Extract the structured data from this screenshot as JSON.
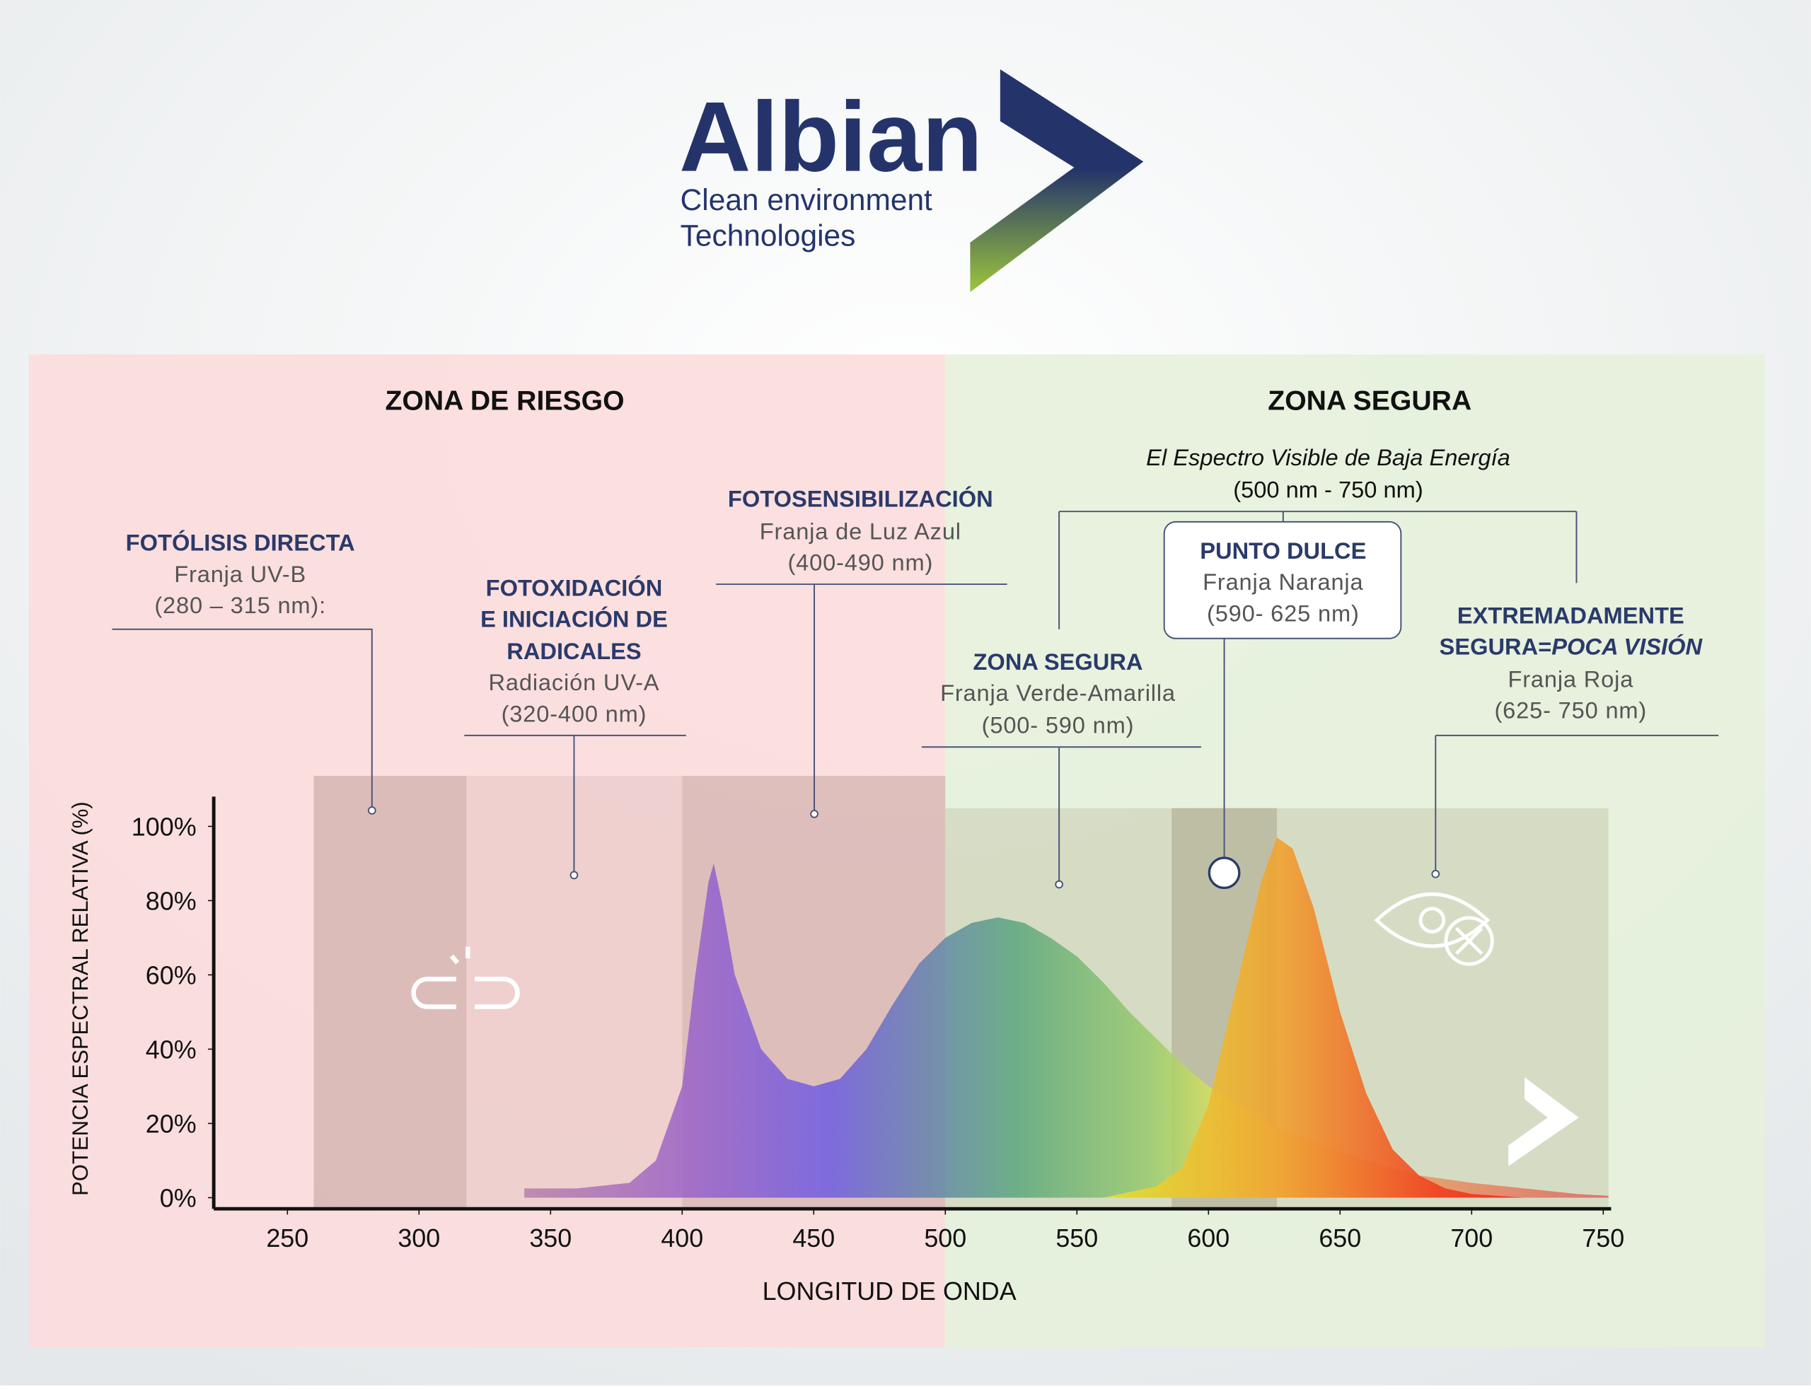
{
  "header": {
    "brand": "Albian",
    "tagline": [
      "Clean environment",
      "Technologies"
    ]
  },
  "zones": [
    "ZONA DE RIESGO",
    "ZONA SEGURA"
  ],
  "annotations": {
    "uvb": [
      "FOTÓLISIS DIRECTA",
      "Franja UV-B",
      "(280 – 315 nm):"
    ],
    "uva": [
      "FOTOXIDACIÓN",
      "E INICIACIÓN DE",
      "RADICALES",
      "Radiación UV-A",
      "(320-400 nm)"
    ],
    "blue": [
      "FOTOSENSIBILIZACIÓN",
      "Franja de Luz Azul",
      "(400-490 nm)"
    ],
    "visible": [
      "El Espectro Visible de Baja Energía",
      "(500 nm - 750 nm)"
    ],
    "sweet": [
      "PUNTO DULCE",
      "Franja Naranja",
      "(590- 625 nm)"
    ],
    "green": [
      "ZONA SEGURA",
      "Franja Verde-Amarilla",
      "(500- 590 nm)"
    ],
    "red": [
      "EXTREMADAMENTE",
      "SEGURA=",
      "POCA VISIÓN",
      "Franja Roja",
      "(625- 750 nm)"
    ]
  },
  "chart_data": {
    "type": "area",
    "x_label": "LONGITUD DE ONDA",
    "y_label": "POTENCIA ESPECTRAL RELATIVA (%)",
    "xlim": [
      222,
      753
    ],
    "ylim": [
      -3,
      108
    ],
    "xticks": [
      250,
      300,
      350,
      400,
      450,
      500,
      550,
      600,
      650,
      700,
      750
    ],
    "yticks": [
      {
        "value": 0,
        "label": "0%"
      },
      {
        "value": 20,
        "label": "20%"
      },
      {
        "value": 40,
        "label": "40%"
      },
      {
        "value": 60,
        "label": "60%"
      },
      {
        "value": 80,
        "label": "80%"
      },
      {
        "value": 100,
        "label": "100%"
      }
    ],
    "bands": [
      [
        260,
        318
      ],
      [
        318,
        400
      ],
      [
        400,
        500
      ],
      [
        500,
        752
      ],
      [
        586,
        626
      ]
    ],
    "series": [
      {
        "x": [
          340,
          360,
          380,
          390,
          400,
          405,
          410,
          412,
          415,
          420,
          430,
          440,
          450,
          460,
          470,
          480,
          490,
          500,
          510,
          520,
          530,
          540,
          550,
          560,
          570,
          580,
          590,
          600,
          620,
          640,
          660,
          680,
          700,
          720,
          740,
          752
        ],
        "values": [
          2.5,
          2.5,
          4,
          10,
          30,
          60,
          85,
          90,
          80,
          60,
          40,
          32,
          30,
          32,
          40,
          52,
          63,
          70,
          74,
          75.5,
          74,
          70,
          65,
          58,
          50,
          43,
          36,
          30,
          21,
          15,
          10,
          6,
          4,
          2.5,
          1,
          0.5
        ]
      },
      {
        "x": [
          560,
          580,
          590,
          600,
          610,
          620,
          626,
          632,
          640,
          650,
          660,
          670,
          680,
          690,
          700,
          720
        ],
        "values": [
          0,
          3,
          8,
          25,
          55,
          85,
          97,
          94,
          78,
          50,
          28,
          13,
          6,
          2.5,
          1,
          0
        ]
      }
    ]
  }
}
